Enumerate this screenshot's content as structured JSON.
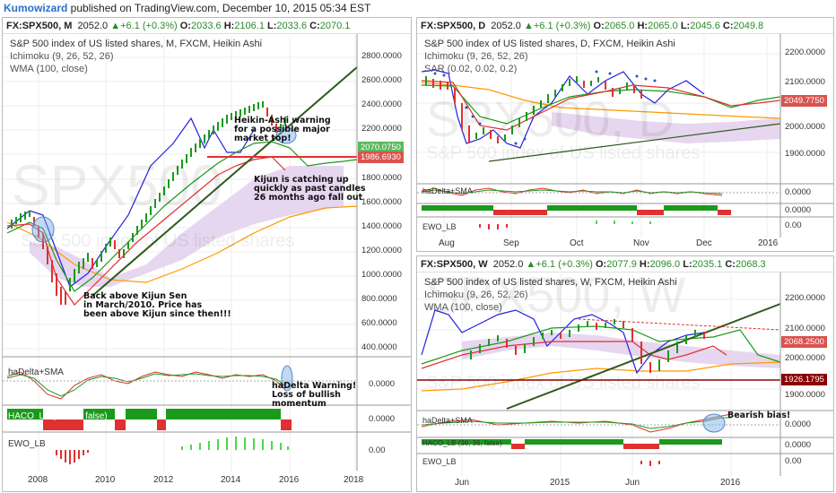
{
  "publisher": {
    "author": "Kumowizard",
    "text": " published on TradingView.com, December 10, 2015 05:34 EST"
  },
  "panels": {
    "monthly": {
      "symbol": "FX:SPX500, M",
      "last": "2052.0",
      "change": "▲+6.1 (+0.3%)",
      "o": "2033.6",
      "h": "2106.1",
      "l": "2033.6",
      "c": "2070.1",
      "title": "S&P 500 index of US listed shares, M, FXCM, Heikin Ashi",
      "ichimoku": "Ichimoku (9, 26, 52, 26)",
      "wma": "WMA (100, close)",
      "watermark": "SPX500",
      "watermark2": "S&P 500 index of US listed shares",
      "price_tag_1": "2070.0750",
      "price_tag_2": "1986.6930",
      "y_ticks": [
        "2800.0000",
        "2600.0000",
        "2400.0000",
        "2200.0000",
        "2000.0000",
        "1800.0000",
        "1600.0000",
        "1400.0000",
        "1200.0000",
        "1000.0000",
        "800.0000",
        "600.0000",
        "400.0000"
      ],
      "x_ticks": [
        "2008",
        "2010",
        "2012",
        "2014",
        "2016",
        "2018"
      ],
      "sub1": "haDelta+SMA",
      "sub1_val": "0.0000",
      "sub2": "HACO_LB (36, 36, false)",
      "sub2_val": "0.0000",
      "sub3": "EWO_LB",
      "sub3_val": "0.00",
      "ann1": "Heikin-Ashi warning\nfor a possible major\nmarket top!",
      "ann2": "Kijun is catching up\nquickly as past candles\n26 months ago fall out",
      "ann3": "Back above Kijun Sen\nin March/2010. Price has\nbeen above Kijun since then!!!",
      "ann4": "haDelta Warning!\nLoss of bullish\nmomentum"
    },
    "daily": {
      "symbol": "FX:SPX500, D",
      "last": "2052.0",
      "change": "▲+6.1 (+0.3%)",
      "o": "2065.0",
      "h": "2065.0",
      "l": "2045.6",
      "c": "2049.8",
      "title": "S&P 500 index of US listed shares, D, FXCM, Heikin Ashi",
      "ichimoku": "Ichimoku (9, 26, 52, 26)",
      "psar": "SAR (0.02, 0.02, 0.2)",
      "watermark": "SPX500, D",
      "watermark2": "S&P 500 index of US listed shares",
      "price_tag": "2049.7750",
      "y_ticks": [
        "2100.0000",
        "2000.0000",
        "1900.0000"
      ],
      "y_top": "2200.0000",
      "x_ticks": [
        "Aug",
        "Sep",
        "Oct",
        "Nov",
        "Dec",
        "2016"
      ],
      "sub1": "haDelta+SMA",
      "sub1_val": "0.0000",
      "sub2_val": "0.0000",
      "sub3": "EWO_LB",
      "sub3_val": "0.00"
    },
    "weekly": {
      "symbol": "FX:SPX500, W",
      "last": "2052.0",
      "change": "▲+6.1 (+0.3%)",
      "o": "2077.9",
      "h": "2096.0",
      "l": "2035.1",
      "c": "2068.3",
      "title": "S&P 500 index of US listed shares, W, FXCM, Heikin Ashi",
      "ichimoku": "Ichimoku (9, 26, 52, 26)",
      "wma": "WMA (100, close)",
      "watermark": "SPX500, W",
      "watermark2": "S&P 500 index of US listed shares",
      "price_tag_1": "2068.2500",
      "price_tag_2": "1926.1795",
      "y_ticks": [
        "2200.0000",
        "2100.0000",
        "2000.0000",
        "1900.0000"
      ],
      "x_ticks": [
        "Jun",
        "2015",
        "Jun",
        "2016"
      ],
      "sub1": "haDelta+SMA",
      "sub1_val": "0.0000",
      "sub2": "HACO_LB (36, 36, false)",
      "sub2_val": "0.0000",
      "sub3": "EWO_LB",
      "sub3_val": "0.00",
      "ann1": "Bearish bias!"
    }
  },
  "colors": {
    "up": "#2a8a2a",
    "down": "#e03030",
    "tag_red": "#d9534f",
    "tag_green": "#5cb85c",
    "tag_dark": "#8b0000",
    "cloud": "#e8d9f0",
    "blue": "#2222dd",
    "orange": "#ff9900",
    "trend": "#2d5a1a"
  }
}
